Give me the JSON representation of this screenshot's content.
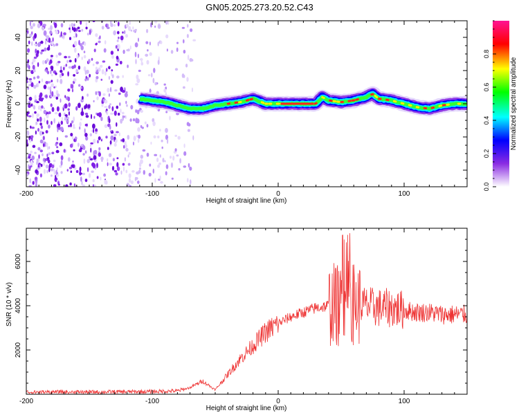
{
  "title": "GN05.2025.273.20.52.C43",
  "chart_data": [
    {
      "type": "heatmap",
      "xlabel": "Height of straight line (km)",
      "ylabel": "Frequency (Hz)",
      "xlim": [
        -200,
        150
      ],
      "ylim": [
        -50,
        50
      ],
      "xticks": [
        -200,
        -100,
        0,
        100
      ],
      "yticks": [
        -40,
        -20,
        0,
        20,
        40
      ],
      "colorbar": {
        "label": "Normalized spectral amplitude",
        "range": [
          0,
          1
        ],
        "ticks": [
          "0.0",
          "0.2",
          "0.4",
          "0.6",
          "0.8"
        ],
        "stops": [
          "#ffffff",
          "#8a2be2",
          "#0000ff",
          "#00ffff",
          "#00ff00",
          "#ffff00",
          "#ff0000",
          "#ff1493"
        ]
      },
      "ridge": {
        "description_points_x": [
          -110,
          -100,
          -90,
          -80,
          -70,
          -60,
          -50,
          -40,
          -30,
          -20,
          -10,
          0,
          10,
          20,
          30,
          35,
          40,
          50,
          60,
          70,
          75,
          80,
          90,
          100,
          110,
          120,
          130,
          140,
          150
        ],
        "frequency": [
          3,
          2,
          1,
          -1,
          -3,
          -3,
          -1,
          0,
          1,
          3,
          0,
          0,
          0,
          0,
          0,
          4,
          2,
          1,
          2,
          4,
          6,
          3,
          2,
          0,
          -2,
          -3,
          -1,
          0,
          0
        ]
      },
      "noise_region_x": [
        -200,
        -70
      ]
    },
    {
      "type": "line",
      "xlabel": "Height of straight line (km)",
      "ylabel": "SNR (10 * v/v)",
      "xlim": [
        -200,
        150
      ],
      "ylim": [
        0,
        7500
      ],
      "xticks": [
        -200,
        -100,
        0,
        100
      ],
      "yticks": [
        2000,
        4000,
        6000
      ],
      "color": "#ee3333",
      "envelope": {
        "x": [
          -200,
          -150,
          -100,
          -80,
          -70,
          -60,
          -50,
          -40,
          -30,
          -20,
          -10,
          0,
          10,
          20,
          30,
          40,
          45,
          50,
          55,
          60,
          70,
          80,
          90,
          100,
          110,
          120,
          130,
          140,
          150
        ],
        "y": [
          100,
          100,
          120,
          150,
          300,
          600,
          200,
          900,
          1600,
          2200,
          2800,
          3200,
          3500,
          3700,
          3900,
          4000,
          4100,
          3900,
          4200,
          4100,
          4000,
          3900,
          3900,
          3800,
          3700,
          3700,
          3600,
          3600,
          3600
        ]
      },
      "peak": {
        "x": 53,
        "y": 7400
      }
    }
  ]
}
